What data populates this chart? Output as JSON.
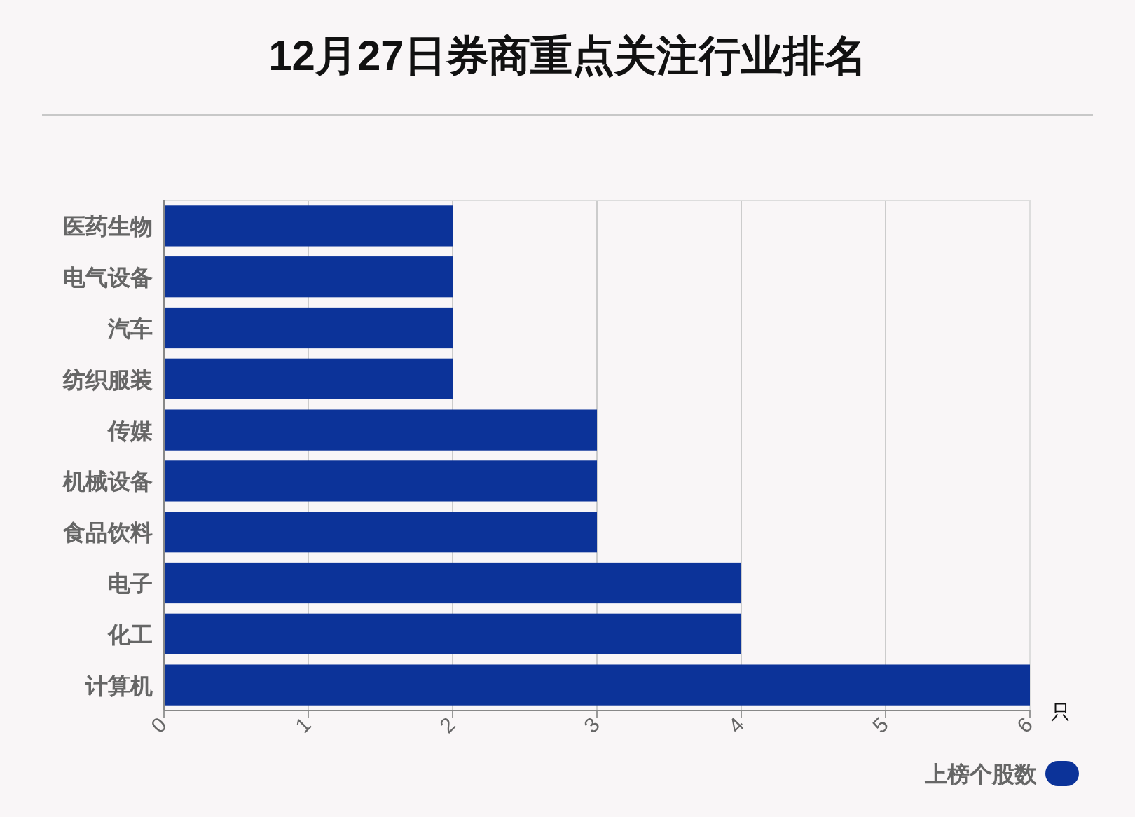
{
  "chart_data": {
    "type": "bar",
    "orientation": "horizontal",
    "title": "12月27日券商重点关注行业排名",
    "xlabel": "只",
    "categories": [
      "医药生物",
      "电气设备",
      "汽车",
      "纺织服装",
      "传媒",
      "机械设备",
      "食品饮料",
      "电子",
      "化工",
      "计算机"
    ],
    "series": [
      {
        "name": "上榜个股数",
        "color": "#0c3399",
        "values": [
          2,
          2,
          2,
          2,
          3,
          3,
          3,
          4,
          4,
          6
        ]
      }
    ],
    "xlim": [
      0,
      6
    ],
    "xticks": [
      0,
      1,
      2,
      3,
      4,
      5,
      6
    ],
    "grid": "x",
    "legend": "bottom right"
  }
}
